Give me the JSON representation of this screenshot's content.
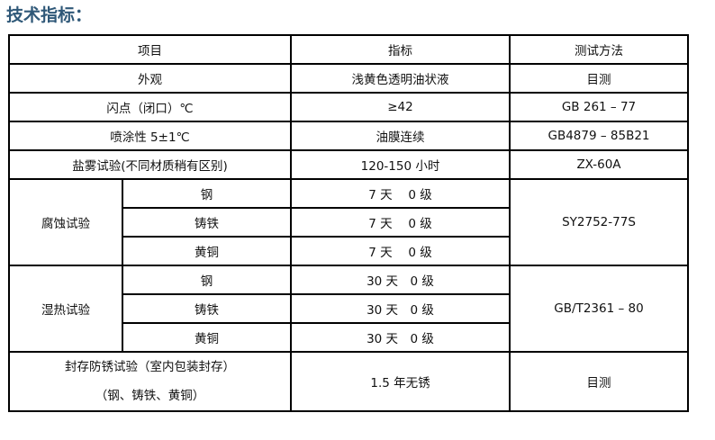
{
  "title": "技术指标：",
  "header": [
    "项目",
    "指标",
    "测试方法"
  ],
  "rows": [
    {
      "item": "外观",
      "spec": "浅黄色透明油状液",
      "method": "目测"
    },
    {
      "item": "闪点（闭口）℃",
      "spec": "≥42",
      "method": "GB 261 – 77"
    },
    {
      "item": "喷涂性 5±1℃",
      "spec": "油膜连续",
      "method": "GB4879 – 85B21"
    },
    {
      "item": "盐雾试验(不同材质稍有区别)",
      "spec": "120-150 小时",
      "method": "ZX-60A"
    }
  ],
  "groups": [
    {
      "item": "腐蚀试验",
      "method": "SY2752-77S",
      "subs": [
        {
          "name": "钢",
          "spec": "7 天　 0 级"
        },
        {
          "name": "铸铁",
          "spec": "7 天　 0 级"
        },
        {
          "name": "黄铜",
          "spec": "7 天　 0 级"
        }
      ]
    },
    {
      "item": "湿热试验",
      "method": "GB/T2361 – 80",
      "subs": [
        {
          "name": "钢",
          "spec": "30 天　0 级"
        },
        {
          "name": "铸铁",
          "spec": "30 天　0 级"
        },
        {
          "name": "黄铜",
          "spec": "30 天　0 级"
        }
      ]
    }
  ],
  "final": {
    "item_line1": "封存防锈试验（室内包装封存）",
    "item_line2": "（钢、铸铁、黄铜）",
    "spec": "1.5 年无锈",
    "method": "目测"
  }
}
